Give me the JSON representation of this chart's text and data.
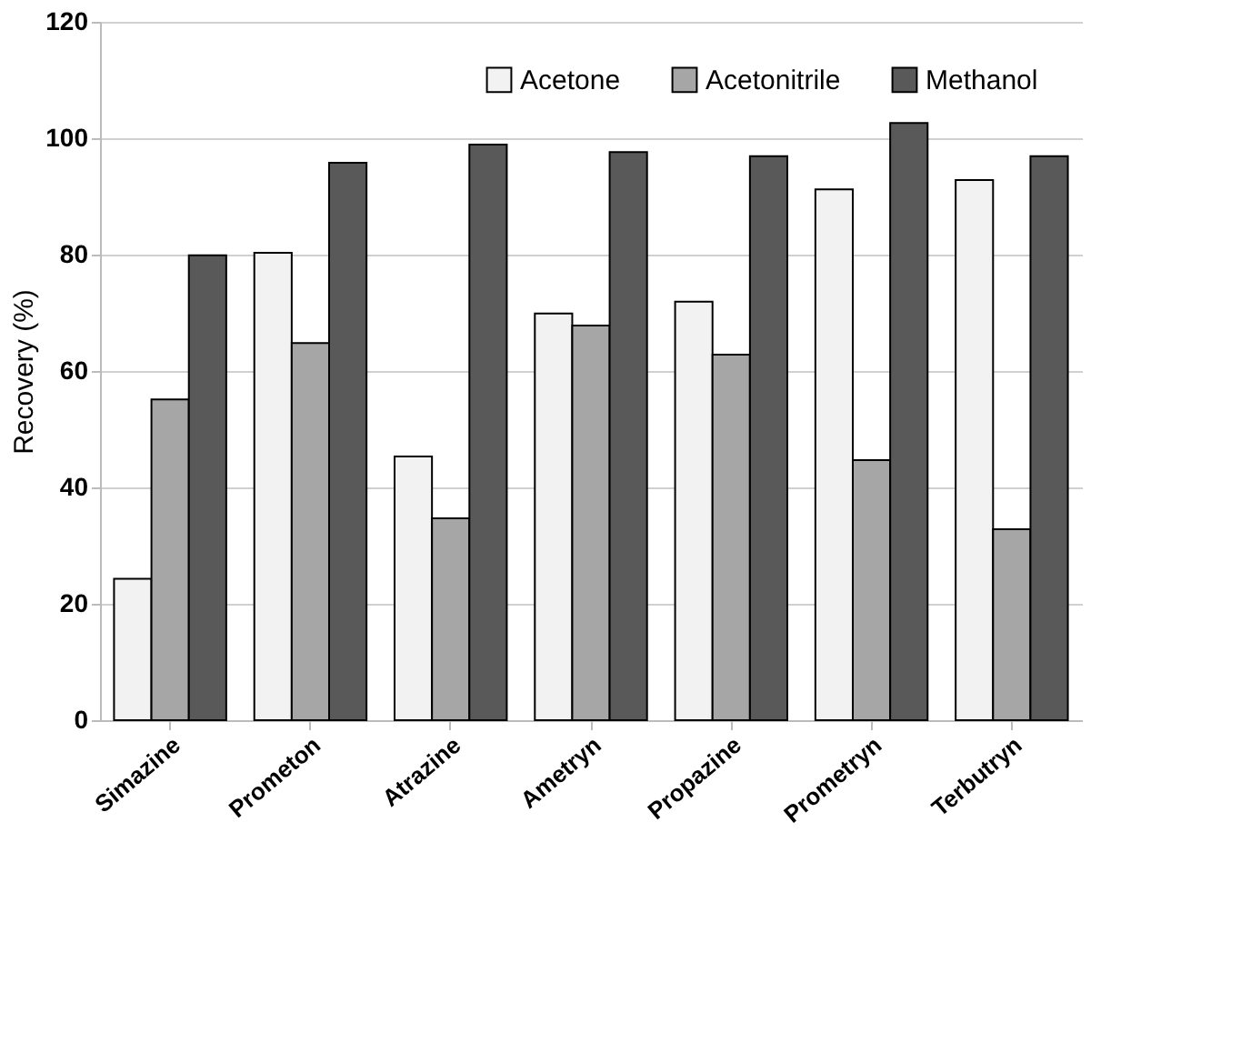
{
  "chart_data": {
    "type": "bar",
    "ylabel": "Recovery (%)",
    "categories": [
      "Simazine",
      "Prometon",
      "Atrazine",
      "Ametryn",
      "Propazine",
      "Prometryn",
      "Terbutryn"
    ],
    "series": [
      {
        "name": "Acetone",
        "color": "#f2f2f2",
        "values": [
          24.3,
          80.3,
          45.3,
          69.9,
          71.9,
          91.2,
          92.8
        ]
      },
      {
        "name": "Acetonitrile",
        "color": "#a6a6a6",
        "values": [
          55.1,
          64.8,
          34.7,
          67.8,
          62.8,
          44.7,
          32.8
        ]
      },
      {
        "name": "Methanol",
        "color": "#595959",
        "values": [
          79.9,
          95.8,
          98.9,
          97.6,
          96.9,
          102.6,
          96.9
        ]
      }
    ],
    "ylim": [
      0,
      120
    ],
    "yticks": [
      0,
      20,
      40,
      60,
      80,
      100,
      120
    ],
    "grid": "y",
    "legend": "top right"
  }
}
